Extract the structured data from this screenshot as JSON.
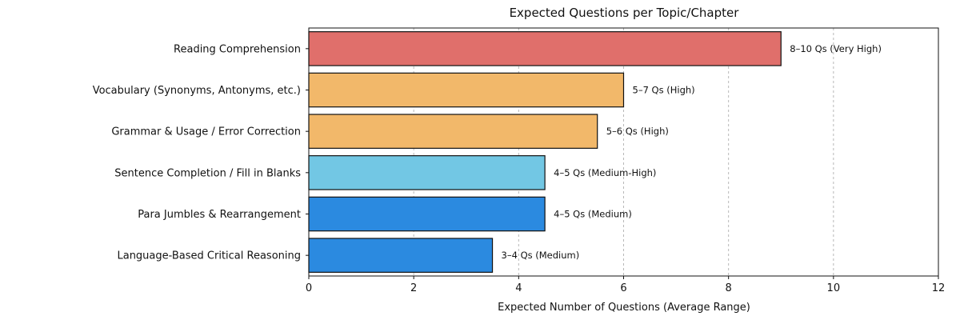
{
  "chart_data": {
    "type": "bar",
    "orientation": "horizontal",
    "title": "Expected Questions per Topic/Chapter",
    "xlabel": "Expected Number of Questions (Average Range)",
    "ylabel": "",
    "xlim": [
      0,
      12
    ],
    "xticks": [
      0,
      2,
      4,
      6,
      8,
      10,
      12
    ],
    "grid": "x-axis dashed",
    "categories": [
      "Reading Comprehension",
      "Vocabulary (Synonyms, Antonyms, etc.)",
      "Grammar & Usage / Error Correction",
      "Sentence Completion / Fill in Blanks",
      "Para Jumbles & Rearrangement",
      "Language-Based Critical Reasoning"
    ],
    "values": [
      9,
      6,
      5.5,
      4.5,
      4.5,
      3.5
    ],
    "data_labels": [
      "8–10 Qs (Very High)",
      "5–7 Qs (High)",
      "5–6 Qs (High)",
      "4–5 Qs (Medium-High)",
      "4–5 Qs (Medium)",
      "3–4 Qs (Medium)"
    ],
    "colors": [
      "#e06f6b",
      "#f2b86a",
      "#f2b86a",
      "#72c7e4",
      "#2b8ae0",
      "#2b8ae0"
    ]
  }
}
